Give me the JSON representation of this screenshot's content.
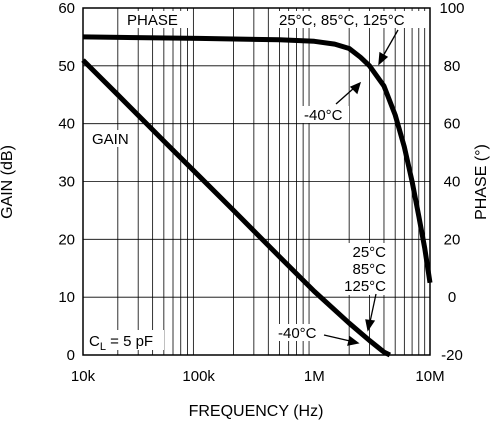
{
  "chart_data": {
    "type": "line",
    "xlabel": "FREQUENCY (Hz)",
    "ylabel": "GAIN (dB)",
    "y2label": "PHASE (°)",
    "xscale": "log",
    "xlim": [
      10000,
      10000000
    ],
    "ylim": [
      0,
      60
    ],
    "y2lim": [
      -20,
      100
    ],
    "grid": true,
    "x_ticks": [
      {
        "value": 10000,
        "label": "10k"
      },
      {
        "value": 100000,
        "label": "100k"
      },
      {
        "value": 1000000,
        "label": "1M"
      },
      {
        "value": 10000000,
        "label": "10M"
      }
    ],
    "y_ticks": [
      0,
      10,
      20,
      30,
      40,
      50,
      60
    ],
    "y2_ticks": [
      -20,
      0,
      20,
      40,
      60,
      80,
      100
    ],
    "series": [
      {
        "name": "GAIN",
        "axis": "left",
        "x": [
          10000,
          20000,
          50000,
          100000,
          200000,
          500000,
          1000000,
          2000000,
          3000000,
          4000000,
          4500000
        ],
        "y": [
          51,
          45,
          37,
          31,
          25,
          17,
          11,
          5.5,
          2.5,
          0.5,
          0
        ]
      },
      {
        "name": "PHASE",
        "axis": "right",
        "x": [
          10000,
          100000,
          500000,
          1000000,
          1500000,
          2000000,
          2500000,
          3000000,
          4000000,
          5000000,
          6000000,
          7000000,
          8000000,
          9000000,
          10000000
        ],
        "y": [
          90,
          89.5,
          89,
          88.5,
          87.5,
          86,
          83,
          80,
          73,
          63,
          52,
          40,
          28,
          17,
          5
        ]
      }
    ],
    "annotations": {
      "phase_label": "PHASE",
      "gain_label": "GAIN",
      "phase_temps": "25°C, 85°C, 125°C",
      "phase_minus40": "-40°C",
      "gain_temp_1": "25°C",
      "gain_temp_2": "85°C",
      "gain_temp_3": "125°C",
      "gain_minus40": "-40°C",
      "cl_prefix": "C",
      "cl_sub": "L",
      "cl_value": " = 5 pF"
    }
  }
}
